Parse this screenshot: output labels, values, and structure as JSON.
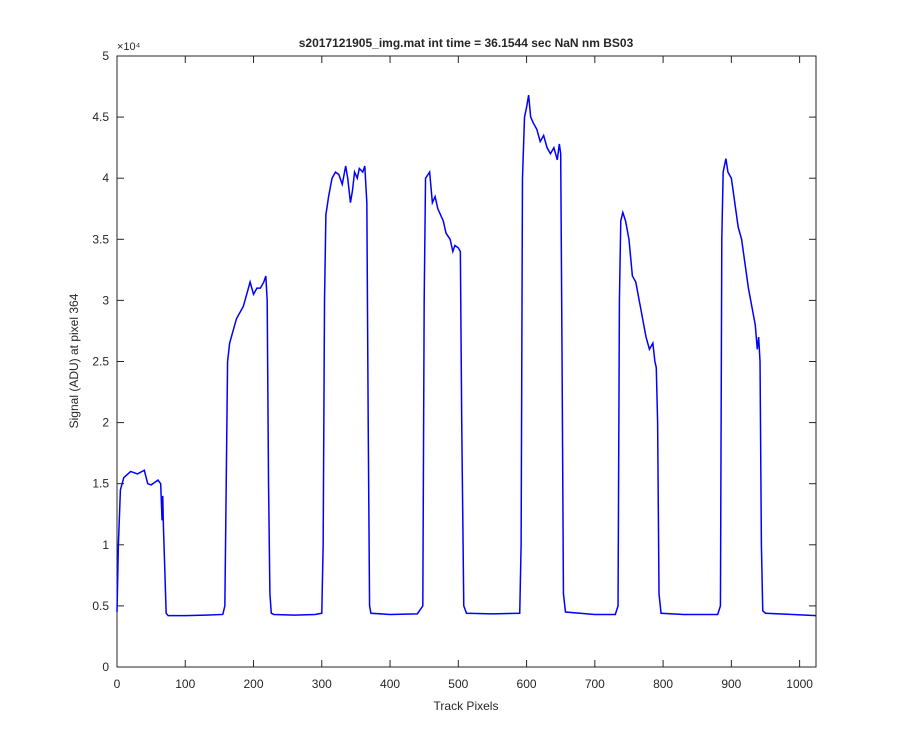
{
  "chart_data": {
    "type": "line",
    "title": "s2017121905_img.mat int time = 36.1544 sec  NaN nm BS03",
    "x_label": "Track Pixels",
    "y_label": "Signal (ADU) at pixel 364",
    "y_multiplier": "×10⁴",
    "xlim": [
      0,
      1024
    ],
    "xticks": [
      0,
      100,
      200,
      300,
      400,
      500,
      600,
      700,
      800,
      900,
      1000
    ],
    "ylim": [
      0,
      50000
    ],
    "yticks": [
      0,
      {
        "value": 5000,
        "label": "0.5"
      },
      {
        "value": 10000,
        "label": "1"
      },
      {
        "value": 15000,
        "label": "1.5"
      },
      {
        "value": 20000,
        "label": "2"
      },
      {
        "value": 25000,
        "label": "2.5"
      },
      {
        "value": 30000,
        "label": "3"
      },
      {
        "value": 35000,
        "label": "3.5"
      },
      {
        "value": 40000,
        "label": "4"
      },
      {
        "value": 45000,
        "label": "4.5"
      },
      {
        "value": 50000,
        "label": "5"
      }
    ],
    "grid": false,
    "series": [
      {
        "color": "#0000ff",
        "x": [
          0,
          2,
          5,
          10,
          20,
          30,
          40,
          45,
          50,
          55,
          60,
          64,
          66,
          67,
          68,
          70,
          72,
          75,
          100,
          130,
          155,
          158,
          160,
          162,
          165,
          170,
          175,
          180,
          185,
          190,
          195,
          200,
          205,
          210,
          215,
          218,
          220,
          222,
          224,
          226,
          230,
          260,
          290,
          300,
          302,
          304,
          306,
          310,
          315,
          320,
          325,
          330,
          335,
          338,
          342,
          345,
          348,
          352,
          355,
          360,
          363,
          366,
          368,
          370,
          372,
          400,
          440,
          448,
          450,
          452,
          458,
          462,
          466,
          470,
          478,
          482,
          488,
          492,
          495,
          500,
          503,
          505,
          508,
          512,
          550,
          590,
          592,
          594,
          597,
          600,
          603,
          606,
          610,
          615,
          620,
          625,
          630,
          635,
          640,
          645,
          648,
          650,
          652,
          654,
          657,
          700,
          730,
          734,
          736,
          738,
          741,
          745,
          750,
          755,
          760,
          765,
          770,
          775,
          780,
          785,
          788,
          790,
          792,
          794,
          797,
          830,
          880,
          884,
          886,
          888,
          892,
          895,
          900,
          905,
          910,
          915,
          920,
          925,
          930,
          935,
          938,
          940,
          942,
          944,
          946,
          950,
          990,
          1024
        ],
        "values": [
          4500,
          10000,
          14500,
          15500,
          16000,
          15800,
          16100,
          15000,
          14900,
          15100,
          15300,
          15000,
          12000,
          14000,
          11500,
          8000,
          4400,
          4200,
          4200,
          4250,
          4300,
          5000,
          15000,
          25000,
          26500,
          27500,
          28500,
          29000,
          29500,
          30500,
          31500,
          30500,
          31000,
          31000,
          31500,
          32000,
          30000,
          15000,
          6000,
          4400,
          4300,
          4250,
          4300,
          4400,
          10000,
          30000,
          37000,
          38500,
          40000,
          40500,
          40300,
          39500,
          41000,
          40000,
          38000,
          39000,
          40500,
          40000,
          40800,
          40500,
          41000,
          38000,
          20000,
          5000,
          4400,
          4300,
          4350,
          5000,
          30000,
          40000,
          40500,
          38000,
          38500,
          37500,
          36500,
          35500,
          35000,
          34000,
          34500,
          34300,
          34000,
          20000,
          5000,
          4400,
          4350,
          4400,
          10000,
          40000,
          45000,
          45800,
          46800,
          45000,
          44500,
          44000,
          43000,
          43500,
          42500,
          42000,
          42500,
          41500,
          42800,
          42000,
          25000,
          6000,
          4500,
          4300,
          4300,
          5000,
          30000,
          36500,
          37200,
          36500,
          35000,
          32000,
          31500,
          30000,
          28500,
          27000,
          26000,
          26500,
          25000,
          24500,
          20000,
          6000,
          4400,
          4300,
          4300,
          5000,
          35000,
          40500,
          41600,
          40500,
          40000,
          38000,
          36000,
          35000,
          33000,
          31000,
          29500,
          28000,
          26000,
          27000,
          25000,
          10000,
          4600,
          4400,
          4300,
          4200
        ]
      }
    ]
  }
}
